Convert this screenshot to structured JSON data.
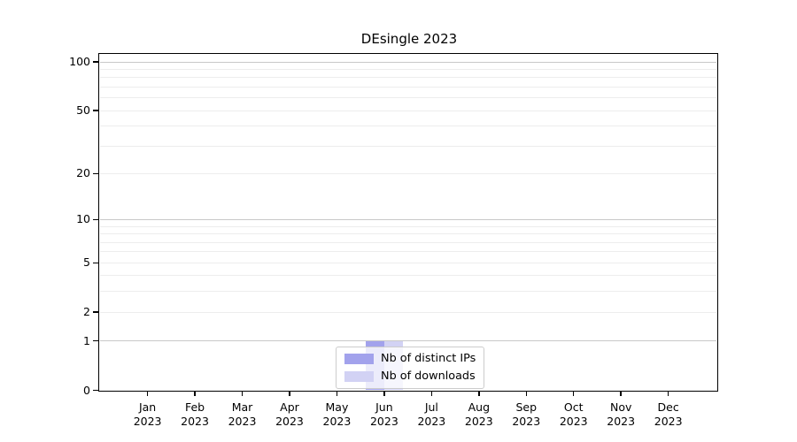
{
  "chart_data": {
    "type": "bar",
    "title": "DEsingle 2023",
    "categories": [
      "Jan",
      "Feb",
      "Mar",
      "Apr",
      "May",
      "Jun",
      "Jul",
      "Aug",
      "Sep",
      "Oct",
      "Nov",
      "Dec"
    ],
    "x_year": "2023",
    "series": [
      {
        "name": "Nb of distinct IPs",
        "color": "#a2a2ec",
        "values": [
          0,
          0,
          0,
          0,
          0,
          1,
          0,
          0,
          0,
          0,
          0,
          0
        ]
      },
      {
        "name": "Nb of downloads",
        "color": "#d2d2f4",
        "values": [
          0,
          0,
          0,
          0,
          0,
          1,
          0,
          0,
          0,
          0,
          0,
          0
        ]
      }
    ],
    "y_axis": {
      "scale": "log1p",
      "ylim": [
        0,
        100
      ],
      "tick_labels": [
        0,
        1,
        2,
        5,
        10,
        20,
        50,
        100
      ],
      "major_gridlines": [
        1,
        10,
        100
      ],
      "minor_gridlines": [
        2,
        3,
        4,
        5,
        6,
        7,
        8,
        9,
        20,
        30,
        40,
        50,
        60,
        70,
        80,
        90
      ]
    },
    "legend": {
      "position": "bottom-center"
    },
    "colors": {
      "major_grid": "#c8c8c8",
      "minor_grid": "#ededed",
      "axis": "#000000",
      "background": "#ffffff"
    }
  }
}
